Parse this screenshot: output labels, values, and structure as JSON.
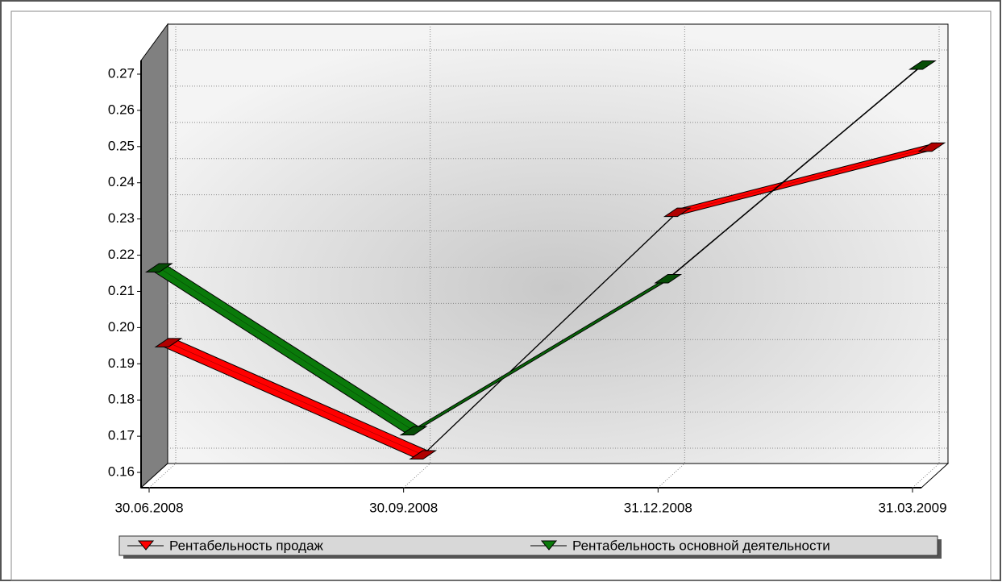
{
  "chart_data": {
    "type": "line3d",
    "categories": [
      "30.06.2008",
      "30.09.2008",
      "31.12.2008",
      "31.03.2009"
    ],
    "series": [
      {
        "name": "Рентабельность продаж",
        "color": "#ff0000",
        "values": [
          0.191,
          0.16,
          0.227,
          0.245
        ]
      },
      {
        "name": "Рентабельность основной деятельности",
        "color": "#0a7a0a",
        "values": [
          0.214,
          0.169,
          0.211,
          0.27
        ]
      }
    ],
    "ylim": [
      0.154,
      0.272
    ],
    "yticks": [
      0.16,
      0.17,
      0.18,
      0.19,
      {
        "value": 0.2,
        "label": "0.20"
      },
      0.21,
      0.22,
      0.23,
      0.24,
      0.25,
      0.26,
      0.27
    ],
    "grid": true
  }
}
